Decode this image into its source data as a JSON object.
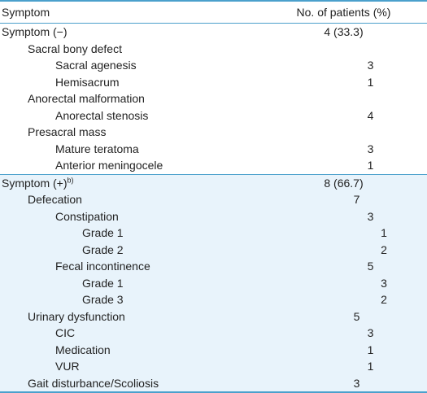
{
  "table": {
    "header": {
      "symptom": "Symptom",
      "patients": "No. of patients (%)"
    },
    "group_negative": [
      {
        "label": "Symptom (−)",
        "value": "4 (33.3)",
        "level": 0
      },
      {
        "label": "Sacral bony defect",
        "value": "",
        "level": 1
      },
      {
        "label": "Sacral agenesis",
        "value": "3",
        "level": 2
      },
      {
        "label": "Hemisacrum",
        "value": "1",
        "level": 2
      },
      {
        "label": "Anorectal malformation",
        "value": "",
        "level": 1
      },
      {
        "label": "Anorectal stenosis",
        "value": "4",
        "level": 2
      },
      {
        "label": "Presacral mass",
        "value": "",
        "level": 1
      },
      {
        "label": "Mature teratoma",
        "value": "3",
        "level": 2
      },
      {
        "label": "Anterior meningocele",
        "value": "1",
        "level": 2
      }
    ],
    "group_positive": [
      {
        "label": "Symptom (+)",
        "sup": "b)",
        "value": "8 (66.7)",
        "level": 0
      },
      {
        "label": "Defecation",
        "value": "7",
        "level": 1
      },
      {
        "label": "Constipation",
        "value": "3",
        "level": 2
      },
      {
        "label": "Grade 1",
        "value": "1",
        "level": 3
      },
      {
        "label": "Grade 2",
        "value": "2",
        "level": 3
      },
      {
        "label": "Fecal incontinence",
        "value": "5",
        "level": 2
      },
      {
        "label": "Grade 1",
        "value": "3",
        "level": 3
      },
      {
        "label": "Grade 3",
        "value": "2",
        "level": 3
      },
      {
        "label": "Urinary dysfunction",
        "value": "5",
        "level": 1
      },
      {
        "label": "CIC",
        "value": "3",
        "level": 2
      },
      {
        "label": "Medication",
        "value": "1",
        "level": 2
      },
      {
        "label": "VUR",
        "value": "1",
        "level": 2
      },
      {
        "label": "Gait disturbance/Scoliosis",
        "value": "3",
        "level": 1
      }
    ],
    "colors": {
      "rule": "#4ba0cc",
      "shade": "#e8f3fb"
    }
  }
}
